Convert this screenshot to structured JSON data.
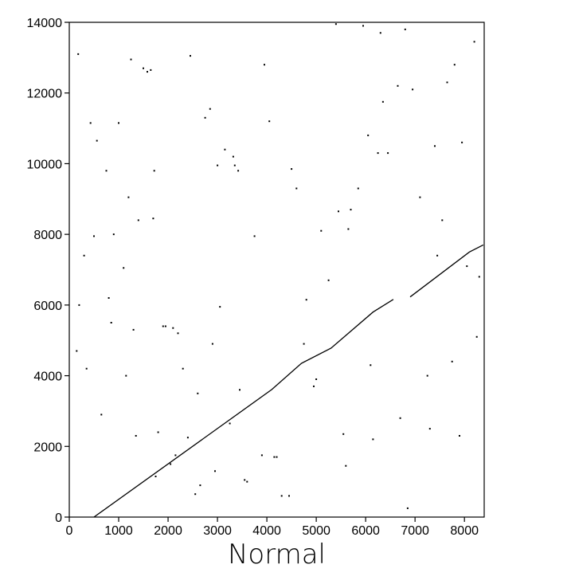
{
  "chart_data": {
    "type": "scatter",
    "title": "",
    "xlabel": "Normal",
    "ylabel": "",
    "xlim": [
      0,
      8400
    ],
    "ylim": [
      0,
      14000
    ],
    "x_ticks": [
      0,
      1000,
      2000,
      3000,
      4000,
      5000,
      6000,
      7000,
      8000
    ],
    "y_ticks": [
      0,
      2000,
      4000,
      6000,
      8000,
      10000,
      12000,
      14000
    ],
    "x_tick_labels": [
      "0",
      "1000",
      "2000",
      "3000",
      "4000",
      "5000",
      "6000",
      "7000",
      "8000"
    ],
    "y_tick_labels": [
      "0",
      "2000",
      "4000",
      "6000",
      "8000",
      "10000",
      "12000",
      "14000"
    ],
    "grid": false,
    "diagonal_segments": [
      {
        "x": [
          500,
          4100,
          4700,
          5300,
          6150,
          6560
        ],
        "y": [
          0,
          3610,
          4350,
          4780,
          5800,
          6160
        ]
      },
      {
        "x": [
          6900,
          8100,
          8380
        ],
        "y": [
          6230,
          7500,
          7700
        ]
      }
    ],
    "scatter_points": {
      "x": [
        180,
        430,
        560,
        750,
        1000,
        1200,
        1250,
        1500,
        1580,
        1650,
        1720,
        1900,
        2100,
        2300,
        2450,
        2750,
        2850,
        3000,
        3150,
        3320,
        3420,
        3950,
        4050,
        4600,
        5400,
        5950,
        6300,
        6450,
        6800,
        7400,
        7650,
        7800,
        8200,
        300,
        500,
        900,
        1100,
        1400,
        1700,
        1950,
        2200,
        2600,
        2900,
        3250,
        3550,
        3900,
        4200,
        4500,
        4800,
        5100,
        5450,
        5700,
        6050,
        6250,
        6650,
        7100,
        7550,
        7950,
        8300,
        200,
        800,
        1300,
        1800,
        2400,
        2950,
        3600,
        4300,
        5000,
        5600,
        6100,
        6700,
        7300,
        7900,
        150,
        650,
        1150,
        1750,
        2150,
        2650,
        3350,
        3750,
        4150,
        4750,
        5250,
        5650,
        5850,
        6350,
        6950,
        7450,
        8050,
        350,
        850,
        1350,
        2050,
        2550,
        3050,
        3450,
        4450,
        4950,
        5550,
        6150,
        6850,
        7250,
        7750,
        8250
      ],
      "y": [
        13100,
        11150,
        10650,
        9800,
        11150,
        9050,
        12950,
        12700,
        12600,
        12650,
        9800,
        5400,
        5350,
        4200,
        13050,
        11300,
        11550,
        9950,
        10400,
        10200,
        9800,
        12800,
        11200,
        9300,
        13950,
        13900,
        13700,
        10300,
        13800,
        10500,
        12300,
        12800,
        13450,
        7400,
        7950,
        8000,
        7050,
        8400,
        8450,
        5400,
        5200,
        3500,
        4900,
        2650,
        1050,
        1750,
        1700,
        9850,
        6150,
        8100,
        8650,
        8700,
        10800,
        10300,
        12200,
        9050,
        8400,
        10600,
        6800,
        6000,
        6200,
        5300,
        2400,
        2250,
        1300,
        1000,
        600,
        3900,
        1450,
        4300,
        2800,
        2500,
        2300,
        4700,
        2900,
        4000,
        1150,
        1750,
        900,
        9950,
        7950,
        1700,
        4900,
        6700,
        8150,
        9300,
        11750,
        12100,
        7400,
        7100,
        4200,
        5500,
        2300,
        1500,
        650,
        5950,
        3600,
        600,
        3700,
        2350,
        2200,
        250,
        4000,
        4400,
        5100
      ],
      "note": ""
    }
  }
}
